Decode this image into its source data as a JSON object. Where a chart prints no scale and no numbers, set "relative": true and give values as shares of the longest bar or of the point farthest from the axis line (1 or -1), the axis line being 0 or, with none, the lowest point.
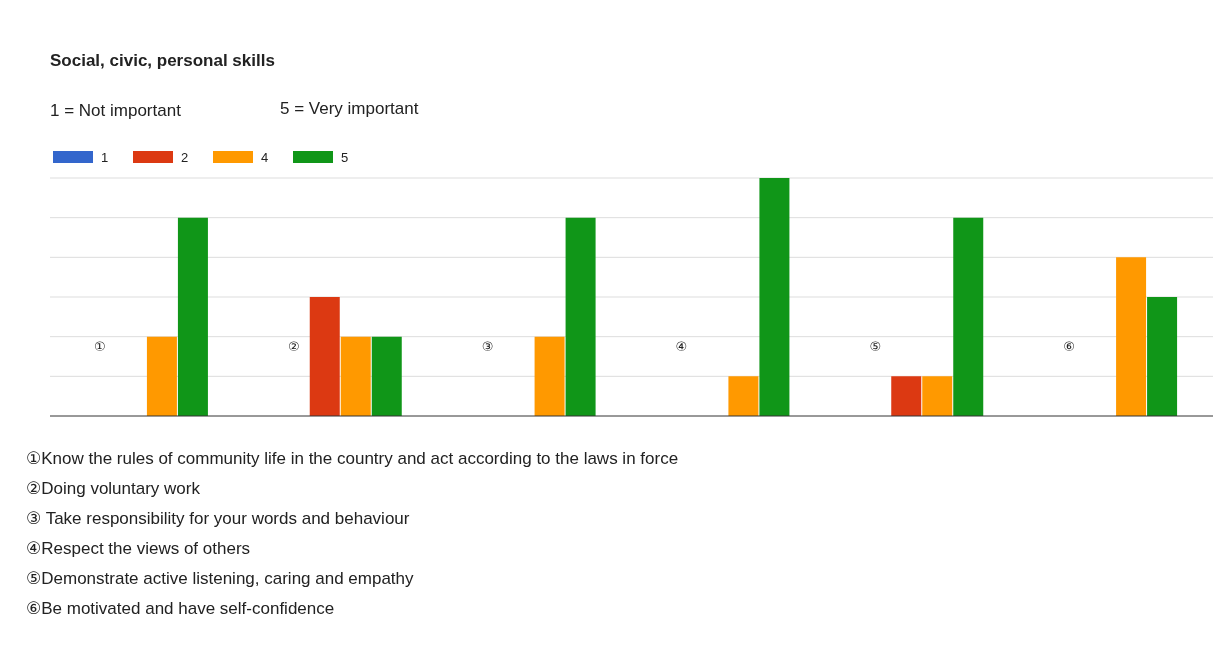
{
  "chart_data": {
    "type": "bar",
    "title": "Social, civic, personal skills",
    "relative": true,
    "grid": true,
    "legend": "top left",
    "categories": [
      "①",
      "②",
      "③",
      "④",
      "⑤",
      "⑥"
    ],
    "series": [
      {
        "name": "1",
        "color": "#3366cc",
        "values": [
          0,
          0,
          0,
          0,
          0,
          0
        ]
      },
      {
        "name": "2",
        "color": "#dc3912",
        "values": [
          0,
          0.5,
          0,
          0,
          0.167,
          0
        ]
      },
      {
        "name": "4",
        "color": "#ff9900",
        "values": [
          0.333,
          0.333,
          0.333,
          0.167,
          0.167,
          0.667
        ]
      },
      {
        "name": "5",
        "color": "#109618",
        "values": [
          0.833,
          0.333,
          0.833,
          1,
          0.833,
          0.5
        ]
      }
    ],
    "annotations": [
      "1 = Not important",
      "5 = Very important",
      "①Know the rules of community life in the country and act according to the laws in force",
      "②Doing voluntary work",
      "③ Take responsibility for your words and behaviour",
      "④Respect the views of others",
      "⑤Demonstrate active listening, caring and empathy",
      "⑥Be motivated and have self-confidence"
    ]
  }
}
